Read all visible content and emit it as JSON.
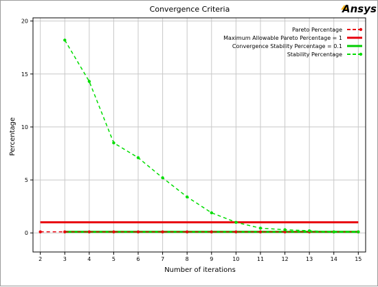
{
  "brand": {
    "name": "Ansys",
    "accent": "#ffb71b"
  },
  "chart_data": {
    "type": "line",
    "title": "Convergence Criteria",
    "xlabel": "Number of iterations",
    "ylabel": "Percentage",
    "xlim": [
      1.7,
      15.3
    ],
    "ylim": [
      -1.8,
      20.3
    ],
    "x_ticks": [
      2,
      3,
      4,
      5,
      6,
      7,
      8,
      9,
      10,
      11,
      12,
      13,
      14,
      15
    ],
    "y_ticks": [
      0,
      5,
      10,
      15,
      20
    ],
    "grid": true,
    "legend_position": "top-right",
    "series": [
      {
        "name": "Pareto Percentage",
        "color": "#e8000b",
        "style": "dashed",
        "marker": true,
        "x": [
          2,
          3,
          4,
          5,
          6,
          7,
          8,
          9,
          10,
          11,
          12,
          13,
          14,
          15
        ],
        "y": [
          0.1,
          0.1,
          0.1,
          0.1,
          0.1,
          0.1,
          0.1,
          0.1,
          0.1,
          0.1,
          0.1,
          0.1,
          0.1,
          0.1
        ]
      },
      {
        "name": "Maximum Allowable Pareto Percentage = 1",
        "color": "#e8000b",
        "style": "solid",
        "marker": false,
        "x": [
          2,
          15
        ],
        "y": [
          1,
          1
        ]
      },
      {
        "name": "Convergence Stability Percentage = 0.1",
        "color": "#00cc00",
        "style": "solid",
        "marker": false,
        "x": [
          3,
          15
        ],
        "y": [
          0.1,
          0.1
        ]
      },
      {
        "name": "Stability Percentage",
        "color": "#00dd00",
        "style": "dashed",
        "marker": true,
        "x": [
          3,
          4,
          5,
          6,
          7,
          8,
          9,
          10,
          11,
          12,
          13,
          14,
          15
        ],
        "y": [
          18.2,
          14.3,
          8.5,
          7.1,
          5.2,
          3.4,
          1.9,
          1.0,
          0.45,
          0.3,
          0.2,
          0.1,
          0.1
        ]
      }
    ]
  }
}
